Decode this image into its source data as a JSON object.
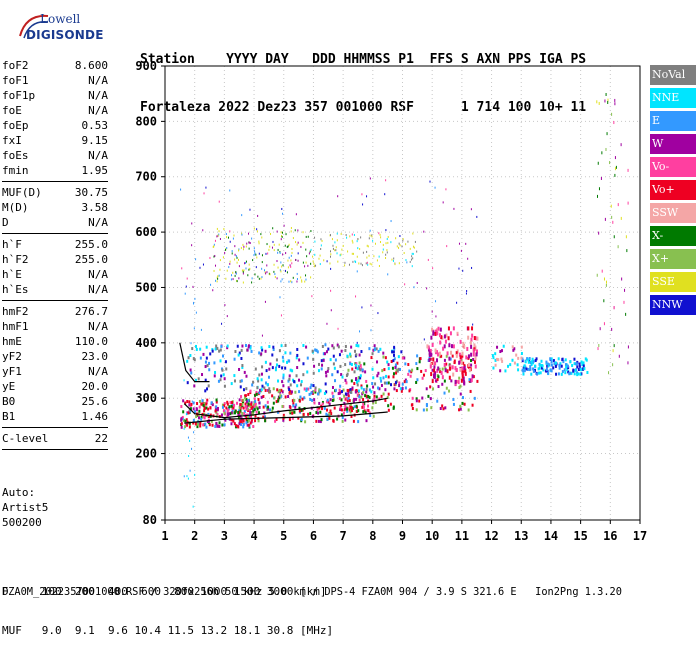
{
  "logo": {
    "line1": "Lowell",
    "line2": "DIGISONDE"
  },
  "header": {
    "line1": "Station    YYYY DAY   DDD HHMMSS P1  FFS S AXN PPS IGA PS",
    "line2": "Fortaleza 2022 Dez23 357 001000 RSF      1 714 100 10+ 11"
  },
  "params": {
    "group1": [
      {
        "k": "foF2",
        "v": "8.600"
      },
      {
        "k": "foF1",
        "v": "N/A"
      },
      {
        "k": "foF1p",
        "v": "N/A"
      },
      {
        "k": "foE",
        "v": "N/A"
      },
      {
        "k": "foEp",
        "v": "0.53"
      },
      {
        "k": "fxI",
        "v": "9.15"
      },
      {
        "k": "foEs",
        "v": "N/A"
      },
      {
        "k": "fmin",
        "v": "1.95"
      }
    ],
    "group2": [
      {
        "k": "MUF(D)",
        "v": "30.75"
      },
      {
        "k": "M(D)",
        "v": "3.58"
      },
      {
        "k": "D",
        "v": "N/A"
      }
    ],
    "group3": [
      {
        "k": "h`F",
        "v": "255.0"
      },
      {
        "k": "h`F2",
        "v": "255.0"
      },
      {
        "k": "h`E",
        "v": "N/A"
      },
      {
        "k": "h`Es",
        "v": "N/A"
      }
    ],
    "group4": [
      {
        "k": "hmF2",
        "v": "276.7"
      },
      {
        "k": "hmF1",
        "v": "N/A"
      },
      {
        "k": "hmE",
        "v": "110.0"
      },
      {
        "k": "yF2",
        "v": "23.0"
      },
      {
        "k": "yF1",
        "v": "N/A"
      },
      {
        "k": "yE",
        "v": "20.0"
      },
      {
        "k": "B0",
        "v": "25.6"
      },
      {
        "k": "B1",
        "v": "1.46"
      }
    ],
    "group5": [
      {
        "k": "C-level",
        "v": "22"
      }
    ]
  },
  "auto": {
    "line1": "Auto:",
    "line2": "Artist5",
    "line3": "500200"
  },
  "footer": {
    "line1": "D     100  200  400  600  800 1000 1500 3000 [km]",
    "line2": "MUF   9.0  9.1  9.6 10.4 11.5 13.2 18.1 30.8 [MHz]",
    "line3": "FZA0M_2022357001000.RSF / 320fx256h 50 kHz 5.0 km / DPS-4 FZA0M 904 / 3.9 S 321.6 E   Ion2Png 1.3.20"
  },
  "legend": [
    {
      "label": "NoVal",
      "color": "#7f7f7f"
    },
    {
      "label": "NNE",
      "color": "#00e5ff"
    },
    {
      "label": "E",
      "color": "#3399ff"
    },
    {
      "label": "W",
      "color": "#a000a0"
    },
    {
      "label": "Vo-",
      "color": "#ff3fa0"
    },
    {
      "label": "Vo+",
      "color": "#ee0022"
    },
    {
      "label": "SSW",
      "color": "#f4a6a6"
    },
    {
      "label": "X-",
      "color": "#007a00"
    },
    {
      "label": "X+",
      "color": "#88c050"
    },
    {
      "label": "SSE",
      "color": "#e0e020"
    },
    {
      "label": "NNW",
      "color": "#1010d0"
    }
  ],
  "chart_data": {
    "type": "scatter",
    "title": "",
    "xlabel": "",
    "ylabel": "",
    "xlim": [
      1,
      17
    ],
    "ylim": [
      80,
      900
    ],
    "x_ticks": [
      1,
      2,
      3,
      4,
      5,
      6,
      7,
      8,
      9,
      10,
      11,
      12,
      13,
      14,
      15,
      16,
      17
    ],
    "y_ticks": [
      80,
      200,
      300,
      400,
      500,
      600,
      700,
      800,
      900
    ],
    "grid": true,
    "traces": [
      {
        "name": "trace-a",
        "points": [
          [
            1.65,
            290
          ],
          [
            2,
            272
          ],
          [
            3,
            265
          ],
          [
            4,
            270
          ],
          [
            5,
            277
          ],
          [
            6,
            283
          ],
          [
            7,
            289
          ],
          [
            8,
            295
          ],
          [
            8.5,
            300
          ]
        ]
      },
      {
        "name": "trace-b",
        "points": [
          [
            1.65,
            255
          ],
          [
            3,
            262
          ],
          [
            5,
            265
          ],
          [
            7,
            268
          ],
          [
            8.5,
            275
          ]
        ]
      },
      {
        "name": "trace-c",
        "points": [
          [
            1.5,
            400
          ],
          [
            1.7,
            350
          ],
          [
            2,
            330
          ],
          [
            2.5,
            330
          ]
        ]
      }
    ]
  }
}
